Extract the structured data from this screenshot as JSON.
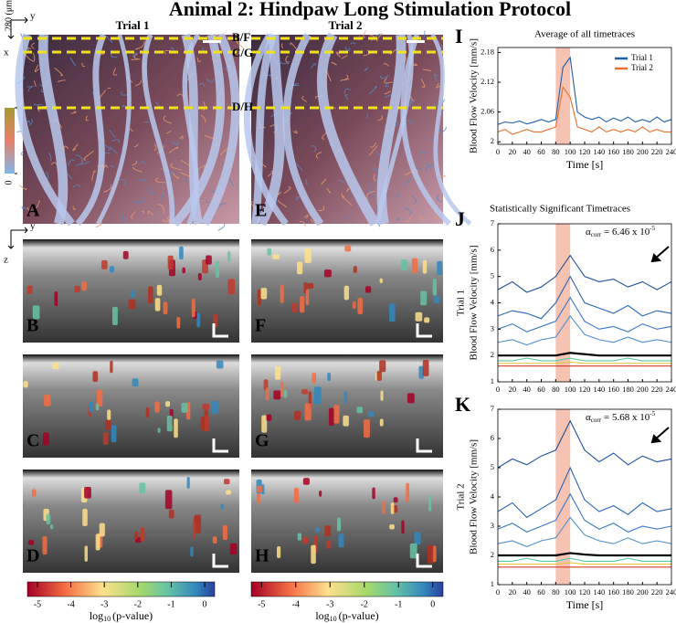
{
  "title": "Animal 2: Hindpaw Long Stimulation Protocol",
  "columns": [
    "Trial 1",
    "Trial 2"
  ],
  "axes_labels": {
    "x": "x",
    "y": "y",
    "y_lower": "y",
    "z": "z"
  },
  "depth_bar": {
    "lim": [
      0,
      280
    ],
    "ticks": [
      {
        "value": 280,
        "label": "280 (μm)"
      },
      0
    ]
  },
  "planes": [
    "B/F",
    "C/G",
    "D/H"
  ],
  "panels": [
    "A",
    "B",
    "C",
    "D",
    "E",
    "F",
    "G",
    "H"
  ],
  "colorbars": [
    {
      "lim": [
        -5.3,
        0.3
      ],
      "ticks": [
        -5,
        -4,
        -3,
        -2,
        -1,
        0
      ],
      "label": "log",
      "label_sub": "10",
      "label_rest": "(p-value)"
    },
    {
      "lim": [
        -5.3,
        0.3
      ],
      "ticks": [
        -5,
        -4,
        -3,
        -2,
        -1,
        0
      ],
      "label": "log",
      "label_sub": "10",
      "label_rest": "(p-value)"
    }
  ],
  "chart_data": [
    {
      "type": "line",
      "panel": "I",
      "title": "Average of all timetraces",
      "xlabel": "Time [s]",
      "ylabel": "Blood Flow Velocity [mm/s]",
      "x": [
        0,
        10,
        20,
        30,
        40,
        50,
        60,
        70,
        80,
        90,
        100,
        110,
        120,
        130,
        140,
        150,
        160,
        170,
        180,
        190,
        200,
        210,
        220,
        230,
        240
      ],
      "series": [
        {
          "name": "Trial 1",
          "color": "#1f5fa8",
          "values": [
            2.035,
            2.04,
            2.038,
            2.042,
            2.036,
            2.04,
            2.045,
            2.04,
            2.045,
            2.15,
            2.17,
            2.06,
            2.05,
            2.045,
            2.05,
            2.04,
            2.048,
            2.042,
            2.05,
            2.04,
            2.045,
            2.04,
            2.05,
            2.04,
            2.045
          ]
        },
        {
          "name": "Trial 2",
          "color": "#e8702a",
          "values": [
            2.02,
            2.025,
            2.015,
            2.02,
            2.025,
            2.02,
            2.02,
            2.025,
            2.03,
            2.11,
            2.09,
            2.03,
            2.025,
            2.02,
            2.03,
            2.02,
            2.025,
            2.02,
            2.025,
            2.02,
            2.03,
            2.02,
            2.025,
            2.02,
            2.02
          ]
        }
      ],
      "xlim": [
        0,
        240
      ],
      "ylim": [
        1.995,
        2.19
      ],
      "xticks": [
        0,
        20,
        40,
        60,
        80,
        100,
        120,
        140,
        160,
        180,
        200,
        220,
        240
      ],
      "yticks": [
        2,
        2.06,
        2.12,
        2.18
      ],
      "stim": [
        80,
        100
      ],
      "legend": "upper right"
    },
    {
      "type": "line",
      "panel": "J",
      "title": "Statistically Significant Timetraces",
      "side_label": "Trial 1",
      "ylabel": "Blood Flow Velocity [mm/s]",
      "annotation": {
        "symbol": "α",
        "sub": "corr",
        "text": "= 6.46 x 10",
        "exp": "-5"
      },
      "x": [
        0,
        20,
        40,
        60,
        80,
        100,
        120,
        140,
        160,
        180,
        200,
        220,
        240
      ],
      "series": [
        {
          "color": "#1d4f9c",
          "values": [
            4.5,
            4.8,
            4.4,
            4.6,
            5.0,
            5.8,
            5.0,
            4.8,
            4.9,
            4.6,
            4.8,
            4.5,
            4.8
          ]
        },
        {
          "color": "#2a64b5",
          "values": [
            3.5,
            3.7,
            3.6,
            3.4,
            4.0,
            5.0,
            4.0,
            3.8,
            3.6,
            3.9,
            3.5,
            3.7,
            3.6
          ]
        },
        {
          "color": "#3a78c4",
          "values": [
            3.0,
            3.2,
            2.9,
            3.1,
            3.3,
            4.2,
            3.3,
            3.0,
            3.1,
            2.9,
            3.2,
            3.0,
            3.1
          ]
        },
        {
          "color": "#4e8fd0",
          "values": [
            2.5,
            2.6,
            2.4,
            2.6,
            2.7,
            3.5,
            2.8,
            2.6,
            2.5,
            2.7,
            2.5,
            2.6,
            2.5
          ]
        },
        {
          "color": "#5cc8a0",
          "values": [
            1.8,
            1.8,
            1.9,
            1.8,
            1.8,
            1.9,
            1.8,
            1.8,
            1.8,
            1.9,
            1.8,
            1.8,
            1.8
          ]
        },
        {
          "color": "#e8c33a",
          "values": [
            1.7,
            1.7,
            1.7,
            1.7,
            1.7,
            1.75,
            1.7,
            1.7,
            1.7,
            1.7,
            1.7,
            1.7,
            1.7
          ]
        },
        {
          "color": "#d23a2a",
          "values": [
            1.6,
            1.6,
            1.6,
            1.6,
            1.6,
            1.6,
            1.6,
            1.6,
            1.6,
            1.6,
            1.6,
            1.6,
            1.6
          ]
        },
        {
          "color": "#000000",
          "values": [
            2,
            2,
            2,
            2,
            2,
            2.1,
            2.05,
            2,
            2,
            2,
            2,
            2,
            2
          ]
        }
      ],
      "xlim": [
        0,
        240
      ],
      "ylim": [
        1,
        7
      ],
      "xticks": [
        0,
        20,
        40,
        60,
        80,
        100,
        120,
        140,
        160,
        180,
        200,
        220,
        240
      ],
      "yticks": [
        1,
        2,
        3,
        4,
        5,
        6,
        7
      ],
      "stim": [
        80,
        100
      ]
    },
    {
      "type": "line",
      "panel": "K",
      "side_label": "Trial 2",
      "ylabel": "Blood Flow Velocity [mm/s]",
      "xlabel": "Time [s]",
      "annotation": {
        "symbol": "α",
        "sub": "corr",
        "text": "= 5.68 x 10",
        "exp": "-5"
      },
      "x": [
        0,
        20,
        40,
        60,
        80,
        100,
        120,
        140,
        160,
        180,
        200,
        220,
        240
      ],
      "series": [
        {
          "color": "#1d4f9c",
          "values": [
            5.0,
            5.3,
            5.1,
            5.4,
            5.6,
            6.6,
            5.6,
            5.2,
            5.5,
            5.1,
            5.4,
            5.2,
            5.3
          ]
        },
        {
          "color": "#2a64b5",
          "values": [
            3.5,
            3.8,
            3.3,
            3.6,
            3.9,
            5.0,
            3.9,
            3.5,
            3.7,
            3.4,
            3.8,
            3.5,
            3.6
          ]
        },
        {
          "color": "#3a78c4",
          "values": [
            2.9,
            3.1,
            2.8,
            3.0,
            3.2,
            4.1,
            3.2,
            2.9,
            3.1,
            2.8,
            3.0,
            2.9,
            3.0
          ]
        },
        {
          "color": "#4e8fd0",
          "values": [
            2.4,
            2.5,
            2.3,
            2.5,
            2.6,
            3.3,
            2.7,
            2.5,
            2.4,
            2.6,
            2.4,
            2.5,
            2.4
          ]
        },
        {
          "color": "#5cc8a0",
          "values": [
            1.8,
            1.8,
            1.9,
            1.8,
            1.8,
            1.9,
            1.8,
            1.8,
            1.8,
            1.9,
            1.8,
            1.8,
            1.8
          ]
        },
        {
          "color": "#e8c33a",
          "values": [
            1.7,
            1.7,
            1.7,
            1.7,
            1.7,
            1.75,
            1.7,
            1.7,
            1.7,
            1.7,
            1.7,
            1.7,
            1.7
          ]
        },
        {
          "color": "#d23a2a",
          "values": [
            1.6,
            1.6,
            1.6,
            1.6,
            1.6,
            1.6,
            1.6,
            1.6,
            1.6,
            1.6,
            1.6,
            1.6,
            1.6
          ]
        },
        {
          "color": "#000000",
          "values": [
            2,
            2,
            2,
            2,
            2,
            2.08,
            2.03,
            2,
            2,
            2,
            2,
            2,
            2
          ]
        }
      ],
      "xlim": [
        0,
        240
      ],
      "ylim": [
        1,
        7
      ],
      "xticks": [
        0,
        20,
        40,
        60,
        80,
        100,
        120,
        140,
        160,
        180,
        200,
        220,
        240
      ],
      "yticks": [
        1,
        2,
        3,
        4,
        5,
        6,
        7
      ],
      "stim": [
        80,
        100
      ]
    }
  ]
}
